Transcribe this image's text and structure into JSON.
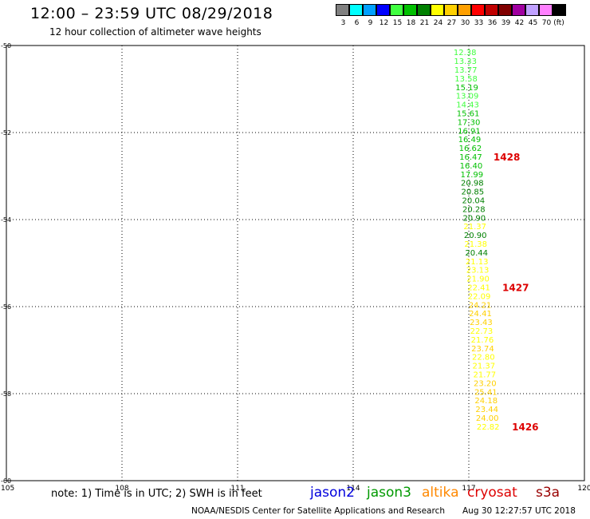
{
  "header": {
    "title": "12:00 – 23:59 UTC 08/29/2018",
    "subtitle": "12 hour collection of altimeter wave heights"
  },
  "color_scale": {
    "unit": "(ft)",
    "items": [
      {
        "label": "3",
        "color": "#808080"
      },
      {
        "label": "6",
        "color": "#00ffff"
      },
      {
        "label": "9",
        "color": "#00a0ff"
      },
      {
        "label": "12",
        "color": "#0000ff"
      },
      {
        "label": "15",
        "color": "#40ff40"
      },
      {
        "label": "18",
        "color": "#00c000"
      },
      {
        "label": "21",
        "color": "#008000"
      },
      {
        "label": "24",
        "color": "#ffff00"
      },
      {
        "label": "27",
        "color": "#ffd000"
      },
      {
        "label": "30",
        "color": "#ffa000"
      },
      {
        "label": "33",
        "color": "#ff0000"
      },
      {
        "label": "36",
        "color": "#c00000"
      },
      {
        "label": "39",
        "color": "#800000"
      },
      {
        "label": "42",
        "color": "#a000a0"
      },
      {
        "label": "45",
        "color": "#c0a0ff"
      },
      {
        "label": "70",
        "color": "#ff80ff"
      },
      {
        "label": "",
        "color": "#000000"
      }
    ]
  },
  "chart_data": {
    "type": "scatter",
    "xlim": [
      105,
      120
    ],
    "ylim": [
      -60,
      -50
    ],
    "x_ticks": [
      "105",
      "108",
      "111",
      "114",
      "117",
      "120"
    ],
    "y_ticks": [
      "-50",
      "-52",
      "-54",
      "-56",
      "-58",
      "-60"
    ],
    "grid": true,
    "points": [
      {
        "lon": 116.9,
        "lat": -50.15,
        "value": "12.38",
        "color": "#40ff40"
      },
      {
        "lon": 116.91,
        "lat": -50.35,
        "value": "13.33",
        "color": "#40ff40"
      },
      {
        "lon": 116.92,
        "lat": -50.55,
        "value": "13.77",
        "color": "#40ff40"
      },
      {
        "lon": 116.93,
        "lat": -50.75,
        "value": "13.58",
        "color": "#40ff40"
      },
      {
        "lon": 116.95,
        "lat": -50.95,
        "value": "15.19",
        "color": "#00c000"
      },
      {
        "lon": 116.96,
        "lat": -51.15,
        "value": "13.09",
        "color": "#40ff40"
      },
      {
        "lon": 116.97,
        "lat": -51.35,
        "value": "14.43",
        "color": "#40ff40"
      },
      {
        "lon": 116.98,
        "lat": -51.55,
        "value": "15.61",
        "color": "#00c000"
      },
      {
        "lon": 117.0,
        "lat": -51.75,
        "value": "17.30",
        "color": "#00c000"
      },
      {
        "lon": 117.01,
        "lat": -51.95,
        "value": "16.91",
        "color": "#00c000"
      },
      {
        "lon": 117.02,
        "lat": -52.15,
        "value": "16.49",
        "color": "#00c000"
      },
      {
        "lon": 117.04,
        "lat": -52.35,
        "value": "16.62",
        "color": "#00c000"
      },
      {
        "lon": 117.05,
        "lat": -52.55,
        "value": "16.47",
        "color": "#00c000"
      },
      {
        "lon": 117.06,
        "lat": -52.75,
        "value": "16.40",
        "color": "#00c000"
      },
      {
        "lon": 117.08,
        "lat": -52.95,
        "value": "17.99",
        "color": "#00c000"
      },
      {
        "lon": 117.09,
        "lat": -53.15,
        "value": "20.98",
        "color": "#008000"
      },
      {
        "lon": 117.1,
        "lat": -53.35,
        "value": "20.85",
        "color": "#008000"
      },
      {
        "lon": 117.12,
        "lat": -53.55,
        "value": "20.04",
        "color": "#008000"
      },
      {
        "lon": 117.13,
        "lat": -53.75,
        "value": "20.28",
        "color": "#008000"
      },
      {
        "lon": 117.14,
        "lat": -53.95,
        "value": "20.90",
        "color": "#008000"
      },
      {
        "lon": 117.16,
        "lat": -54.15,
        "value": "21.37",
        "color": "#ffff00"
      },
      {
        "lon": 117.17,
        "lat": -54.35,
        "value": "20.90",
        "color": "#008000"
      },
      {
        "lon": 117.18,
        "lat": -54.55,
        "value": "21.38",
        "color": "#ffff00"
      },
      {
        "lon": 117.2,
        "lat": -54.75,
        "value": "20.44",
        "color": "#008000"
      },
      {
        "lon": 117.21,
        "lat": -54.95,
        "value": "21.13",
        "color": "#ffff00"
      },
      {
        "lon": 117.23,
        "lat": -55.15,
        "value": "23.13",
        "color": "#ffff00"
      },
      {
        "lon": 117.24,
        "lat": -55.35,
        "value": "21.90",
        "color": "#ffff00"
      },
      {
        "lon": 117.26,
        "lat": -55.55,
        "value": "22.41",
        "color": "#ffff00"
      },
      {
        "lon": 117.27,
        "lat": -55.75,
        "value": "22.09",
        "color": "#ffff00"
      },
      {
        "lon": 117.29,
        "lat": -55.95,
        "value": "24.21",
        "color": "#ffd000"
      },
      {
        "lon": 117.3,
        "lat": -56.15,
        "value": "24.41",
        "color": "#ffd000"
      },
      {
        "lon": 117.32,
        "lat": -56.35,
        "value": "23.43",
        "color": "#ffd000"
      },
      {
        "lon": 117.33,
        "lat": -56.55,
        "value": "22.73",
        "color": "#ffff00"
      },
      {
        "lon": 117.35,
        "lat": -56.75,
        "value": "21.76",
        "color": "#ffff00"
      },
      {
        "lon": 117.36,
        "lat": -56.95,
        "value": "23.74",
        "color": "#ffd000"
      },
      {
        "lon": 117.38,
        "lat": -57.15,
        "value": "22.80",
        "color": "#ffff00"
      },
      {
        "lon": 117.39,
        "lat": -57.35,
        "value": "21.37",
        "color": "#ffff00"
      },
      {
        "lon": 117.41,
        "lat": -57.55,
        "value": "21.77",
        "color": "#ffff00"
      },
      {
        "lon": 117.42,
        "lat": -57.75,
        "value": "23.20",
        "color": "#ffd000"
      },
      {
        "lon": 117.44,
        "lat": -57.95,
        "value": "25.41",
        "color": "#ffd000"
      },
      {
        "lon": 117.45,
        "lat": -58.15,
        "value": "24.18",
        "color": "#ffd000"
      },
      {
        "lon": 117.47,
        "lat": -58.35,
        "value": "23.44",
        "color": "#ffd000"
      },
      {
        "lon": 117.48,
        "lat": -58.55,
        "value": "24.00",
        "color": "#ffd000"
      },
      {
        "lon": 117.5,
        "lat": -58.75,
        "value": "22.82",
        "color": "#ffff00"
      }
    ],
    "time_labels": [
      {
        "lon": 117.64,
        "lat": -52.55,
        "text": "1428",
        "color": "#dd0000"
      },
      {
        "lon": 117.87,
        "lat": -55.55,
        "text": "1427",
        "color": "#dd0000"
      },
      {
        "lon": 118.12,
        "lat": -58.75,
        "text": "1426",
        "color": "#dd0000"
      }
    ]
  },
  "footer": {
    "note": "note: 1) Time is in UTC; 2) SWH is in feet",
    "satellites": [
      {
        "name": "jason2",
        "color": "#0000dd"
      },
      {
        "name": "jason3",
        "color": "#009900"
      },
      {
        "name": "altika",
        "color": "#ff8800"
      },
      {
        "name": "cryosat",
        "color": "#dd0000"
      },
      {
        "name": "s3a",
        "color": "#990000"
      }
    ],
    "credit": "NOAA/NESDIS Center for Satellite Applications and Research",
    "timestamp": "Aug 30 12:27:57 UTC 2018"
  }
}
